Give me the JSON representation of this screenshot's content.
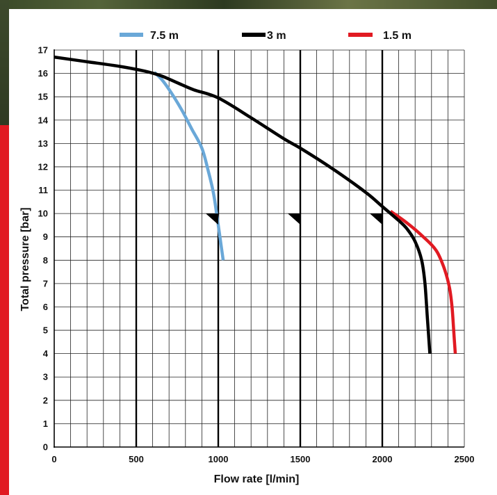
{
  "chart_data": {
    "type": "line",
    "xlabel": "Flow rate [l/min]",
    "ylabel": "Total pressure [bar]",
    "xlim": [
      0,
      2500
    ],
    "ylim": [
      0,
      17
    ],
    "x_ticks": [
      0,
      500,
      1000,
      1500,
      2000,
      2500
    ],
    "y_ticks": [
      0,
      1,
      2,
      3,
      4,
      5,
      6,
      7,
      8,
      9,
      10,
      11,
      12,
      13,
      14,
      15,
      16,
      17
    ],
    "grid": true,
    "minor_grid_step_x": 100,
    "major_gridlines_x": [
      500,
      1000,
      1500,
      2000
    ],
    "legend_position": "top",
    "series": [
      {
        "name": "7.5 m",
        "color": "#6aa8d8",
        "points": [
          [
            610,
            16.05
          ],
          [
            660,
            15.7
          ],
          [
            720,
            15.1
          ],
          [
            780,
            14.4
          ],
          [
            840,
            13.6
          ],
          [
            900,
            12.8
          ],
          [
            940,
            11.8
          ],
          [
            970,
            10.9
          ],
          [
            990,
            10.0
          ],
          [
            1010,
            9.0
          ],
          [
            1030,
            8.0
          ]
        ]
      },
      {
        "name": "3 m",
        "color": "#000000",
        "points": [
          [
            0,
            16.7
          ],
          [
            200,
            16.5
          ],
          [
            400,
            16.3
          ],
          [
            550,
            16.1
          ],
          [
            650,
            15.9
          ],
          [
            750,
            15.6
          ],
          [
            850,
            15.3
          ],
          [
            1000,
            14.95
          ],
          [
            1200,
            14.1
          ],
          [
            1400,
            13.2
          ],
          [
            1500,
            12.8
          ],
          [
            1700,
            11.9
          ],
          [
            1900,
            10.9
          ],
          [
            2000,
            10.3
          ],
          [
            2100,
            9.7
          ],
          [
            2150,
            9.35
          ],
          [
            2200,
            8.8
          ],
          [
            2240,
            8.0
          ],
          [
            2260,
            7.0
          ],
          [
            2275,
            5.5
          ],
          [
            2290,
            4.0
          ]
        ]
      },
      {
        "name": "1.5 m",
        "color": "#e11a22",
        "points": [
          [
            2050,
            10.1
          ],
          [
            2150,
            9.6
          ],
          [
            2250,
            9.0
          ],
          [
            2330,
            8.4
          ],
          [
            2380,
            7.6
          ],
          [
            2410,
            6.8
          ],
          [
            2425,
            6.0
          ],
          [
            2435,
            5.0
          ],
          [
            2445,
            4.0
          ]
        ]
      }
    ],
    "markers": [
      {
        "x": 1000,
        "y": 10.0
      },
      {
        "x": 1500,
        "y": 10.0
      },
      {
        "x": 2000,
        "y": 10.0
      }
    ]
  }
}
